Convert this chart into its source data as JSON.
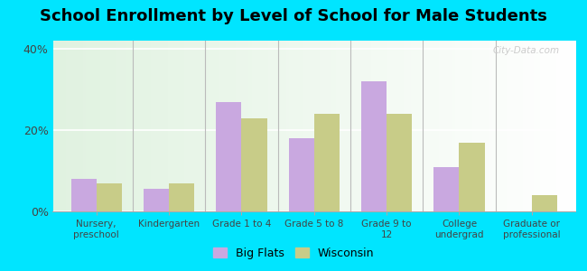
{
  "title": "School Enrollment by Level of School for Male Students",
  "categories": [
    "Nursery,\npreschool",
    "Kindergarten",
    "Grade 1 to 4",
    "Grade 5 to 8",
    "Grade 9 to\n12",
    "College\nundergrad",
    "Graduate or\nprofessional"
  ],
  "big_flats": [
    8,
    5.5,
    27,
    18,
    32,
    11,
    0
  ],
  "wisconsin": [
    7,
    7,
    23,
    24,
    24,
    17,
    4
  ],
  "big_flats_color": "#c9a8e0",
  "wisconsin_color": "#c8cc88",
  "background_color": "#00e5ff",
  "ylabel_ticks": [
    "0%",
    "20%",
    "40%"
  ],
  "yticks": [
    0,
    20,
    40
  ],
  "ylim": [
    0,
    42
  ],
  "title_fontsize": 13,
  "legend_labels": [
    "Big Flats",
    "Wisconsin"
  ],
  "bar_width": 0.35
}
